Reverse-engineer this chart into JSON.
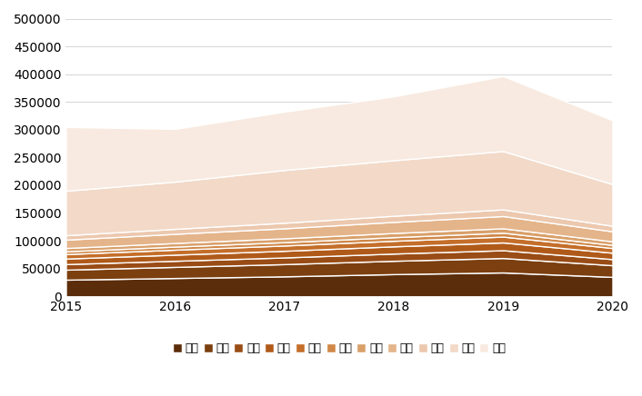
{
  "years": [
    2015,
    2016,
    2017,
    2018,
    2019,
    2020
  ],
  "series": {
    "深圳": [
      30000,
      33000,
      36000,
      40000,
      43000,
      35000
    ],
    "广州": [
      18000,
      20000,
      22000,
      24000,
      26000,
      21000
    ],
    "东莞": [
      10000,
      11000,
      12000,
      13000,
      14000,
      11000
    ],
    "珠海": [
      10000,
      11000,
      12000,
      13000,
      14000,
      11500
    ],
    "中山": [
      8000,
      9000,
      9500,
      10000,
      10500,
      8500
    ],
    "肇庆": [
      5000,
      5500,
      6000,
      6500,
      7000,
      5500
    ],
    "江门": [
      6000,
      6500,
      7000,
      7500,
      8000,
      6500
    ],
    "佛山": [
      15000,
      16500,
      18000,
      20000,
      22000,
      18000
    ],
    "惠州": [
      8000,
      9000,
      10000,
      11000,
      12000,
      10000
    ],
    "香港": [
      80000,
      85000,
      95000,
      100000,
      105000,
      75000
    ],
    "澳门": [
      115000,
      95000,
      105000,
      115000,
      135000,
      115000
    ]
  },
  "colors": {
    "深圳": "#5C2D0A",
    "广州": "#7B3F10",
    "东莞": "#994C15",
    "珠海": "#B05A1A",
    "中山": "#C46E2A",
    "肇庆": "#D08848",
    "江门": "#D9A06A",
    "佛山": "#E4B48A",
    "惠州": "#ECC8AE",
    "香港": "#F2D9C8",
    "澳门": "#F8EAE0"
  },
  "ylim": [
    0,
    500000
  ],
  "yticks": [
    0,
    50000,
    100000,
    150000,
    200000,
    250000,
    300000,
    350000,
    400000,
    450000,
    500000
  ],
  "background_color": "#ffffff",
  "legend_labels": [
    "深圳",
    "广州",
    "东莞",
    "珠海",
    "中山",
    "肇庆",
    "江门",
    "佛山",
    "惠州",
    "香港",
    "澳门"
  ]
}
